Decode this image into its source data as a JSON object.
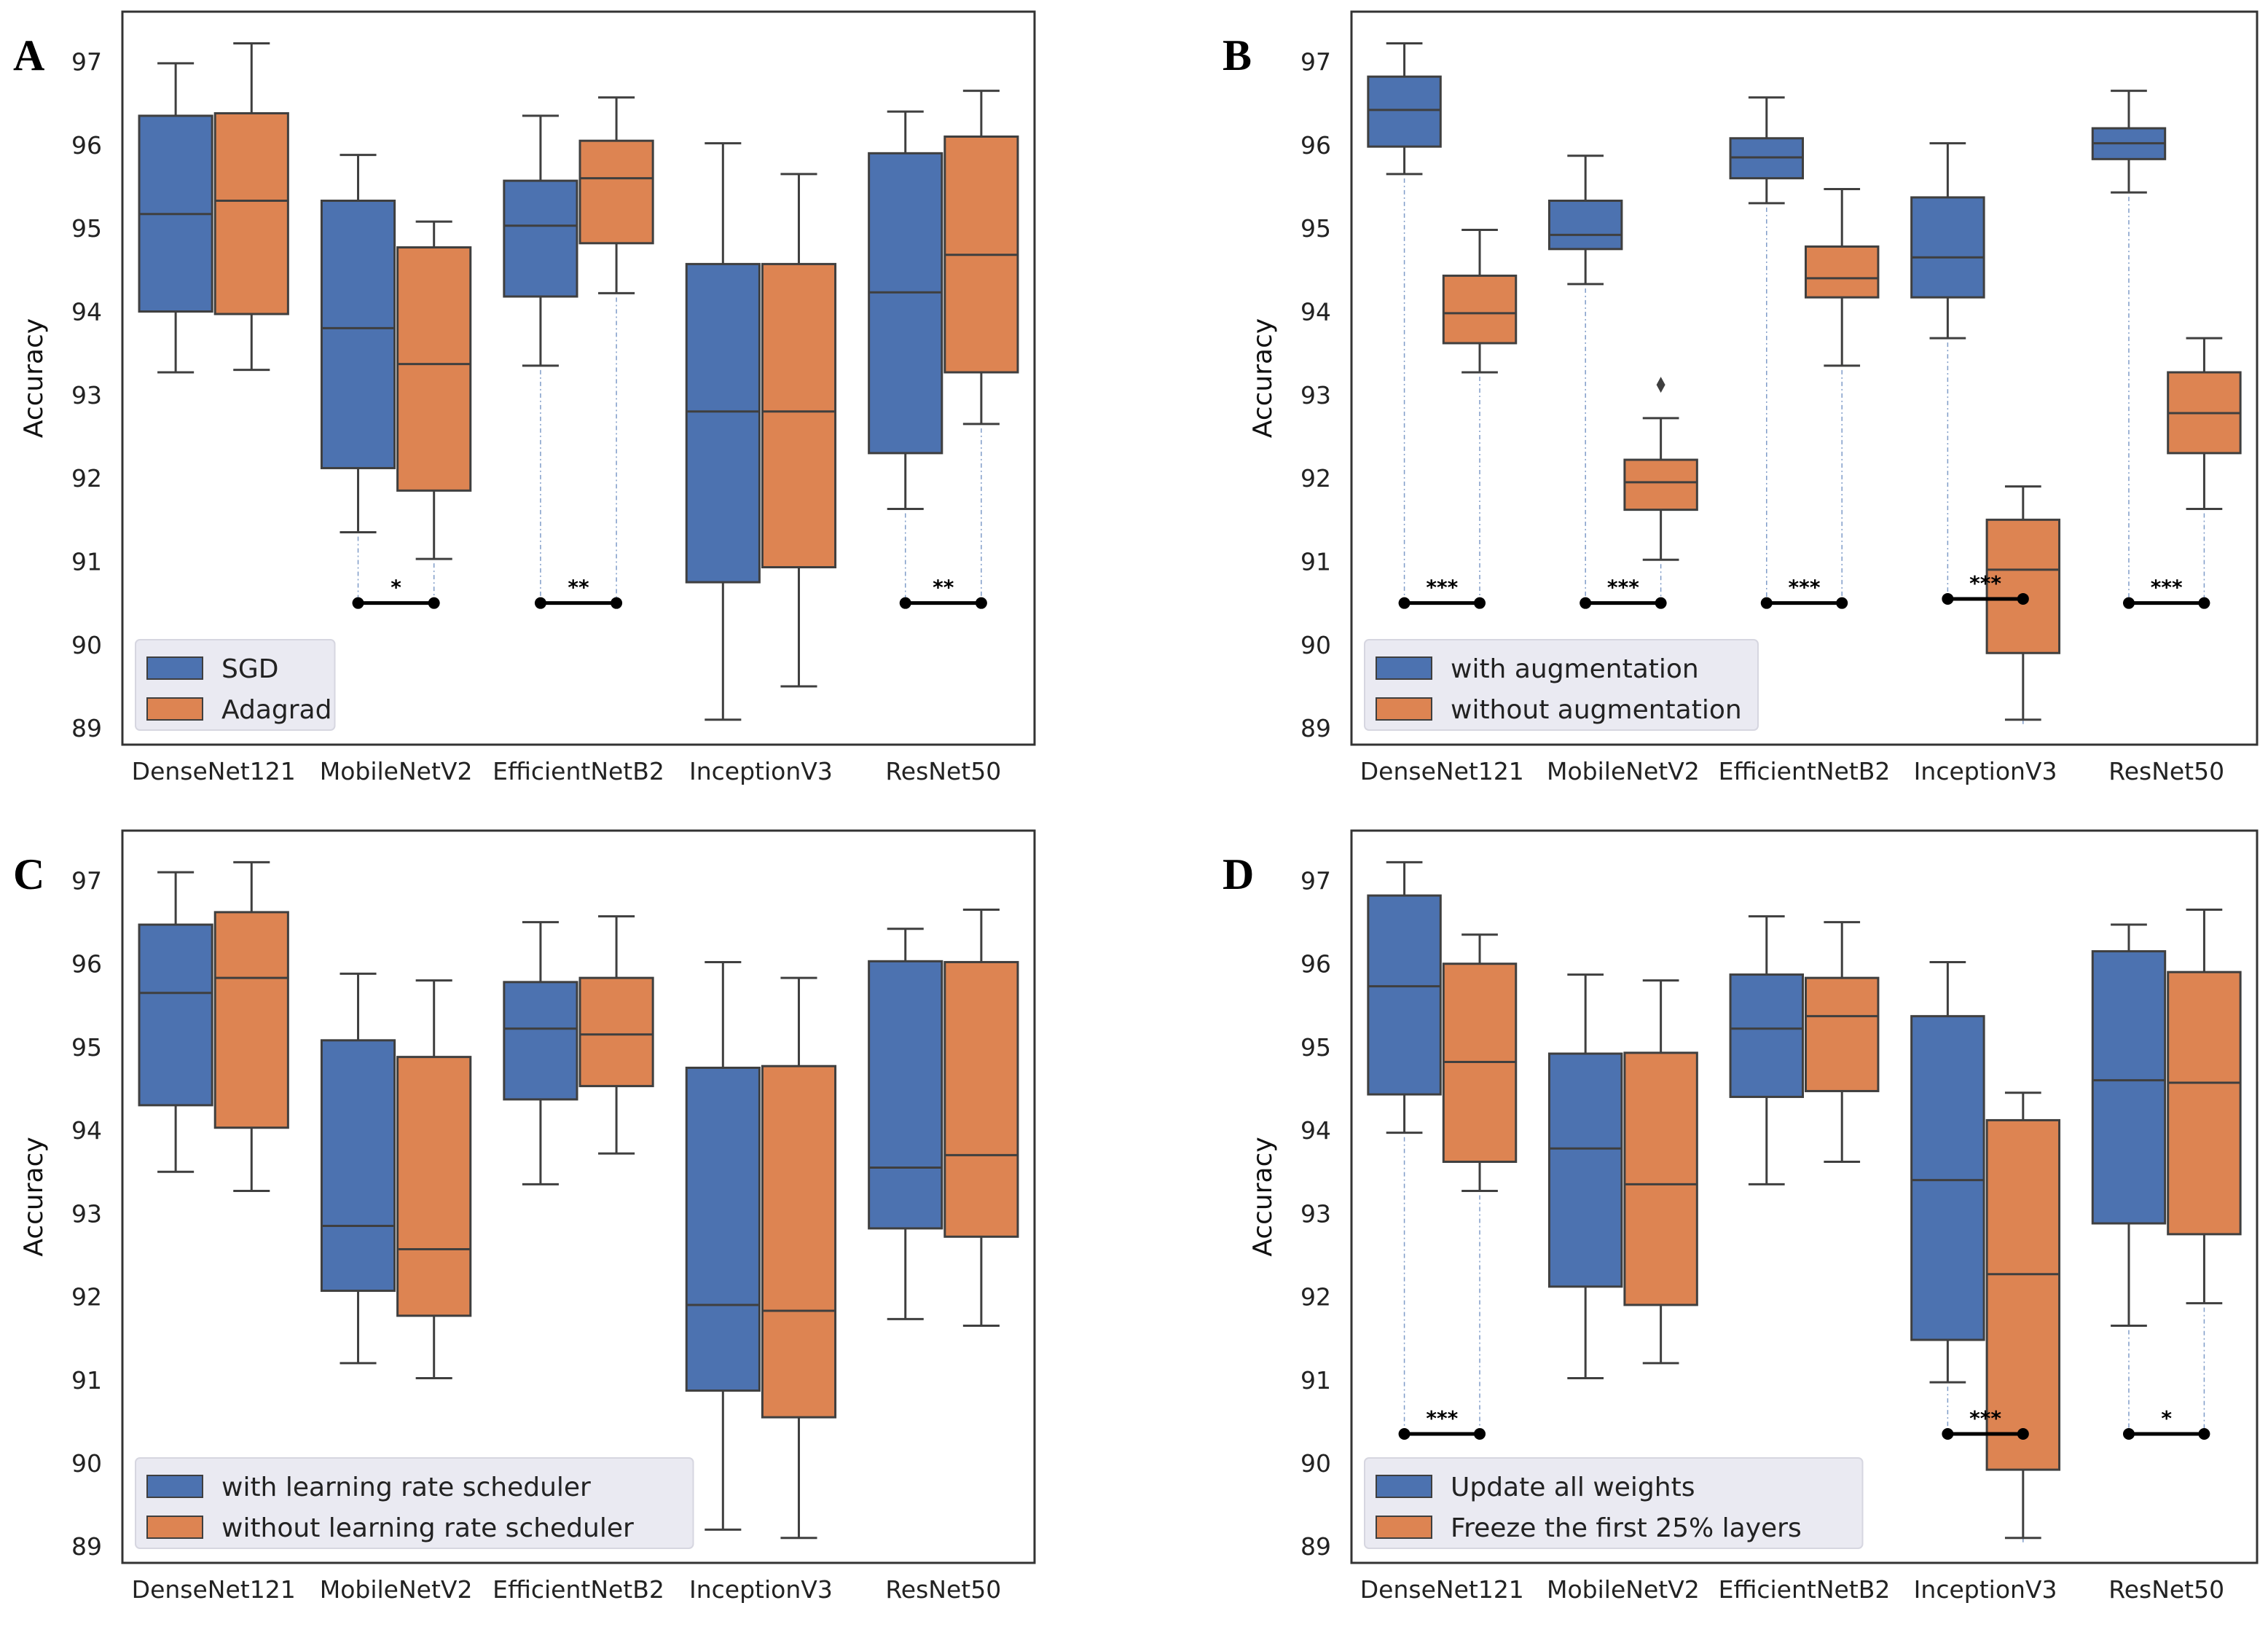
{
  "chart_data": [
    {
      "panel": "A",
      "type": "box",
      "ylabel": "Accuracy",
      "ylim": [
        88.8,
        97.6
      ],
      "yticks": [
        89,
        90,
        91,
        92,
        93,
        94,
        95,
        96,
        97
      ],
      "categories": [
        "DenseNet121",
        "MobileNetV2",
        "EfficientNetB2",
        "InceptionV3",
        "ResNet50"
      ],
      "legend": {
        "position": "lower-left",
        "entries": [
          "SGD",
          "Adagrad"
        ]
      },
      "series": [
        {
          "name": "SGD",
          "color": "#4c72b0",
          "boxes": [
            {
              "min": 93.27,
              "q1": 94.0,
              "median": 95.17,
              "q3": 96.35,
              "max": 96.98
            },
            {
              "min": 91.35,
              "q1": 92.12,
              "median": 93.8,
              "q3": 95.33,
              "max": 95.88
            },
            {
              "min": 93.35,
              "q1": 94.18,
              "median": 95.03,
              "q3": 95.57,
              "max": 96.35
            },
            {
              "min": 89.1,
              "q1": 90.75,
              "median": 92.8,
              "q3": 94.57,
              "max": 96.02
            },
            {
              "min": 91.63,
              "q1": 92.3,
              "median": 94.23,
              "q3": 95.9,
              "max": 96.4
            }
          ]
        },
        {
          "name": "Adagrad",
          "color": "#dd8452",
          "boxes": [
            {
              "min": 93.3,
              "q1": 93.97,
              "median": 95.33,
              "q3": 96.38,
              "max": 97.22
            },
            {
              "min": 91.03,
              "q1": 91.85,
              "median": 93.37,
              "q3": 94.77,
              "max": 95.08
            },
            {
              "min": 94.22,
              "q1": 94.82,
              "median": 95.6,
              "q3": 96.05,
              "max": 96.57
            },
            {
              "min": 89.5,
              "q1": 90.93,
              "median": 92.8,
              "q3": 94.57,
              "max": 95.65
            },
            {
              "min": 92.65,
              "q1": 93.27,
              "median": 94.68,
              "q3": 96.1,
              "max": 96.65
            }
          ]
        }
      ],
      "significance": [
        {
          "category": 1,
          "label": "*",
          "y": 90.5
        },
        {
          "category": 2,
          "label": "**",
          "y": 90.5
        },
        {
          "category": 4,
          "label": "**",
          "y": 90.5
        }
      ]
    },
    {
      "panel": "B",
      "type": "box",
      "ylabel": "Accuracy",
      "ylim": [
        88.8,
        97.6
      ],
      "yticks": [
        89,
        90,
        91,
        92,
        93,
        94,
        95,
        96,
        97
      ],
      "categories": [
        "DenseNet121",
        "MobileNetV2",
        "EfficientNetB2",
        "InceptionV3",
        "ResNet50"
      ],
      "legend": {
        "position": "lower-left",
        "entries": [
          "with augmentation",
          "without augmentation"
        ]
      },
      "series": [
        {
          "name": "with augmentation",
          "color": "#4c72b0",
          "boxes": [
            {
              "min": 95.65,
              "q1": 95.98,
              "median": 96.42,
              "q3": 96.82,
              "max": 97.22
            },
            {
              "min": 94.33,
              "q1": 94.75,
              "median": 94.92,
              "q3": 95.33,
              "max": 95.87
            },
            {
              "min": 95.3,
              "q1": 95.6,
              "median": 95.85,
              "q3": 96.08,
              "max": 96.57
            },
            {
              "min": 93.68,
              "q1": 94.17,
              "median": 94.65,
              "q3": 95.37,
              "max": 96.02
            },
            {
              "min": 95.43,
              "q1": 95.83,
              "median": 96.02,
              "q3": 96.2,
              "max": 96.65
            }
          ]
        },
        {
          "name": "without augmentation",
          "color": "#dd8452",
          "boxes": [
            {
              "min": 93.27,
              "q1": 93.62,
              "median": 93.98,
              "q3": 94.43,
              "max": 94.98
            },
            {
              "min": 91.02,
              "q1": 91.62,
              "median": 91.95,
              "q3": 92.22,
              "max": 92.72,
              "outliers": [
                93.12
              ]
            },
            {
              "min": 93.35,
              "q1": 94.17,
              "median": 94.4,
              "q3": 94.78,
              "max": 95.47
            },
            {
              "min": 89.1,
              "q1": 89.9,
              "median": 90.9,
              "q3": 91.5,
              "max": 91.9
            },
            {
              "min": 91.63,
              "q1": 92.3,
              "median": 92.78,
              "q3": 93.27,
              "max": 93.68
            }
          ]
        }
      ],
      "significance": [
        {
          "category": 0,
          "label": "***",
          "y": 90.5
        },
        {
          "category": 1,
          "label": "***",
          "y": 90.5
        },
        {
          "category": 2,
          "label": "***",
          "y": 90.5
        },
        {
          "category": 3,
          "label": "***",
          "y": 90.55
        },
        {
          "category": 4,
          "label": "***",
          "y": 90.5
        }
      ]
    },
    {
      "panel": "C",
      "type": "box",
      "ylabel": "Accuracy",
      "ylim": [
        88.8,
        97.6
      ],
      "yticks": [
        89,
        90,
        91,
        92,
        93,
        94,
        95,
        96,
        97
      ],
      "categories": [
        "DenseNet121",
        "MobileNetV2",
        "EfficientNetB2",
        "InceptionV3",
        "ResNet50"
      ],
      "legend": {
        "position": "lower-left",
        "entries": [
          "with learning rate scheduler",
          "without learning rate scheduler"
        ]
      },
      "series": [
        {
          "name": "with learning rate scheduler",
          "color": "#4c72b0",
          "boxes": [
            {
              "min": 93.5,
              "q1": 94.3,
              "median": 95.65,
              "q3": 96.47,
              "max": 97.1
            },
            {
              "min": 91.2,
              "q1": 92.07,
              "median": 92.85,
              "q3": 95.08,
              "max": 95.88
            },
            {
              "min": 93.35,
              "q1": 94.37,
              "median": 95.22,
              "q3": 95.78,
              "max": 96.5
            },
            {
              "min": 89.2,
              "q1": 90.87,
              "median": 91.9,
              "q3": 94.75,
              "max": 96.02
            },
            {
              "min": 91.73,
              "q1": 92.82,
              "median": 93.55,
              "q3": 96.03,
              "max": 96.42
            }
          ]
        },
        {
          "name": "without learning rate scheduler",
          "color": "#dd8452",
          "boxes": [
            {
              "min": 93.27,
              "q1": 94.03,
              "median": 95.83,
              "q3": 96.62,
              "max": 97.22
            },
            {
              "min": 91.02,
              "q1": 91.77,
              "median": 92.57,
              "q3": 94.88,
              "max": 95.8
            },
            {
              "min": 93.72,
              "q1": 94.53,
              "median": 95.15,
              "q3": 95.83,
              "max": 96.57
            },
            {
              "min": 89.1,
              "q1": 90.55,
              "median": 91.83,
              "q3": 94.77,
              "max": 95.83
            },
            {
              "min": 91.65,
              "q1": 92.72,
              "median": 93.7,
              "q3": 96.02,
              "max": 96.65
            }
          ]
        }
      ],
      "significance": []
    },
    {
      "panel": "D",
      "type": "box",
      "ylabel": "Accuracy",
      "ylim": [
        88.8,
        97.6
      ],
      "yticks": [
        89,
        90,
        91,
        92,
        93,
        94,
        95,
        96,
        97
      ],
      "categories": [
        "DenseNet121",
        "MobileNetV2",
        "EfficientNetB2",
        "InceptionV3",
        "ResNet50"
      ],
      "legend": {
        "position": "lower-left",
        "entries": [
          "Update all weights",
          "Freeze the first 25% layers"
        ]
      },
      "series": [
        {
          "name": "Update all weights",
          "color": "#4c72b0",
          "boxes": [
            {
              "min": 93.97,
              "q1": 94.43,
              "median": 95.73,
              "q3": 96.82,
              "max": 97.22
            },
            {
              "min": 91.02,
              "q1": 92.12,
              "median": 93.78,
              "q3": 94.92,
              "max": 95.87
            },
            {
              "min": 93.35,
              "q1": 94.4,
              "median": 95.22,
              "q3": 95.87,
              "max": 96.57
            },
            {
              "min": 90.97,
              "q1": 91.48,
              "median": 93.4,
              "q3": 95.37,
              "max": 96.02
            },
            {
              "min": 91.65,
              "q1": 92.88,
              "median": 94.6,
              "q3": 96.15,
              "max": 96.47
            }
          ]
        },
        {
          "name": "Freeze the first 25% layers",
          "color": "#dd8452",
          "boxes": [
            {
              "min": 93.27,
              "q1": 93.62,
              "median": 94.82,
              "q3": 96.0,
              "max": 96.35
            },
            {
              "min": 91.2,
              "q1": 91.9,
              "median": 93.35,
              "q3": 94.93,
              "max": 95.8
            },
            {
              "min": 93.62,
              "q1": 94.47,
              "median": 95.37,
              "q3": 95.83,
              "max": 96.5
            },
            {
              "min": 89.1,
              "q1": 89.92,
              "median": 92.27,
              "q3": 94.12,
              "max": 94.45
            },
            {
              "min": 91.92,
              "q1": 92.75,
              "median": 94.57,
              "q3": 95.9,
              "max": 96.65
            }
          ]
        }
      ],
      "significance": [
        {
          "category": 0,
          "label": "***",
          "y": 90.35
        },
        {
          "category": 3,
          "label": "***",
          "y": 90.35
        },
        {
          "category": 4,
          "label": "*",
          "y": 90.35
        }
      ]
    }
  ]
}
